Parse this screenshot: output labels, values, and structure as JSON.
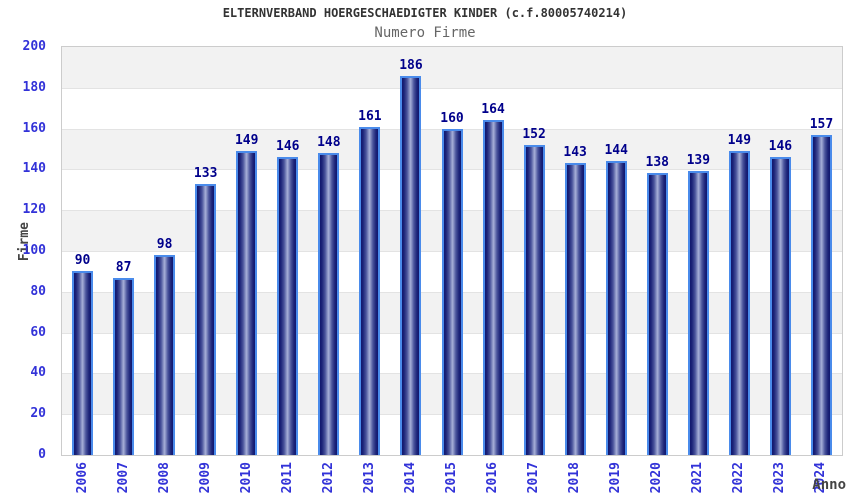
{
  "chart_data": {
    "type": "bar",
    "title": "ELTERNVERBAND HOERGESCHAEDIGTER KINDER (c.f.80005740214)",
    "subtitle": "Numero Firme",
    "xlabel": "Anno",
    "ylabel": "Firme",
    "categories": [
      "2006",
      "2007",
      "2008",
      "2009",
      "2010",
      "2011",
      "2012",
      "2013",
      "2014",
      "2015",
      "2016",
      "2017",
      "2018",
      "2019",
      "2020",
      "2021",
      "2022",
      "2023",
      "2024"
    ],
    "values": [
      90,
      87,
      98,
      133,
      149,
      146,
      148,
      161,
      186,
      160,
      164,
      152,
      143,
      144,
      138,
      139,
      149,
      146,
      157
    ],
    "ylim": [
      0,
      200
    ],
    "ytick_step": 20,
    "yticks": [
      0,
      20,
      40,
      60,
      80,
      100,
      120,
      140,
      160,
      180,
      200
    ],
    "legend": "none",
    "grid": "alternating-horizontal-bands",
    "colors": {
      "band": "#f2f2f2",
      "plot_border": "#cccccc",
      "bar_border": "#4a8beb",
      "bar_edge": "#10166e",
      "bar_mid": "#a7b0d8",
      "axis_label": "#3232d8",
      "value_label": "#00008b",
      "title": "#333333",
      "subtitle": "#666666",
      "axis_title": "#444444"
    }
  }
}
